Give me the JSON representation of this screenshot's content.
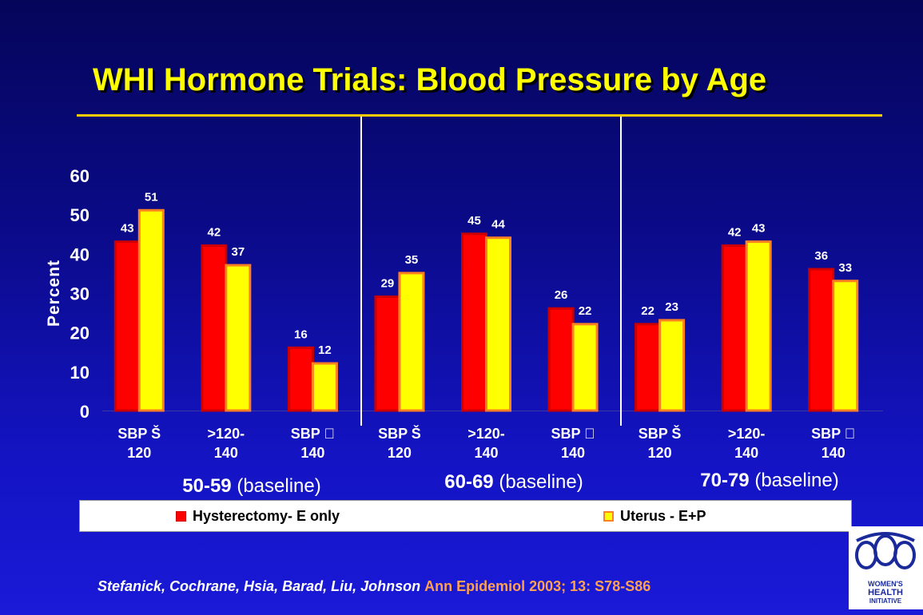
{
  "slide": {
    "title": "WHI Hormone Trials: Blood Pressure by Age",
    "logo_text": [
      "WOMEN'S",
      "HEALTH",
      "INITIATIVE"
    ]
  },
  "colors": {
    "background": "#0a0a86",
    "title": "#ffff00",
    "series_e_only": "#ff0000",
    "series_e_p": "#ffff00",
    "citation_authors": "#ffffff",
    "citation_journal": "#ffa050"
  },
  "legend": {
    "items": [
      {
        "label": "Hysterectomy- E only",
        "color": "#ff0000",
        "border": "#cc0000"
      },
      {
        "label": "Uterus - E+P",
        "color": "#ffff00",
        "border": "#ff8020"
      }
    ]
  },
  "citation": {
    "authors": "Stefanick, Cochrane, Hsia, Barad, Liu, Johnson",
    "journal": "Ann Epidemiol 2003; 13: S78-S86"
  },
  "chart_data": {
    "type": "bar",
    "ylabel": "Percent",
    "ylim": [
      0,
      60
    ],
    "yticks": [
      0,
      10,
      20,
      30,
      40,
      50,
      60
    ],
    "groups": [
      {
        "label_bold": "50-59",
        "label_rest": " (baseline)",
        "categories": [
          [
            "SBP Š",
            "120"
          ],
          [
            ">120-",
            "140"
          ],
          [
            "SBP ",
            "140"
          ]
        ]
      },
      {
        "label_bold": "60-69",
        "label_rest": " (baseline)",
        "categories": [
          [
            "SBP Š",
            "120"
          ],
          [
            ">120-",
            "140"
          ],
          [
            "SBP ",
            "140"
          ]
        ]
      },
      {
        "label_bold": "70-79",
        "label_rest": " (baseline)",
        "categories": [
          [
            "SBP Š",
            "120"
          ],
          [
            ">120-",
            "140"
          ],
          [
            "SBP ",
            "140"
          ]
        ]
      }
    ],
    "series": [
      {
        "name": "Hysterectomy- E only",
        "values": [
          43,
          42,
          16,
          29,
          45,
          26,
          22,
          42,
          36
        ]
      },
      {
        "name": "Uterus - E+P",
        "values": [
          51,
          37,
          12,
          35,
          44,
          22,
          23,
          43,
          33
        ]
      }
    ]
  }
}
